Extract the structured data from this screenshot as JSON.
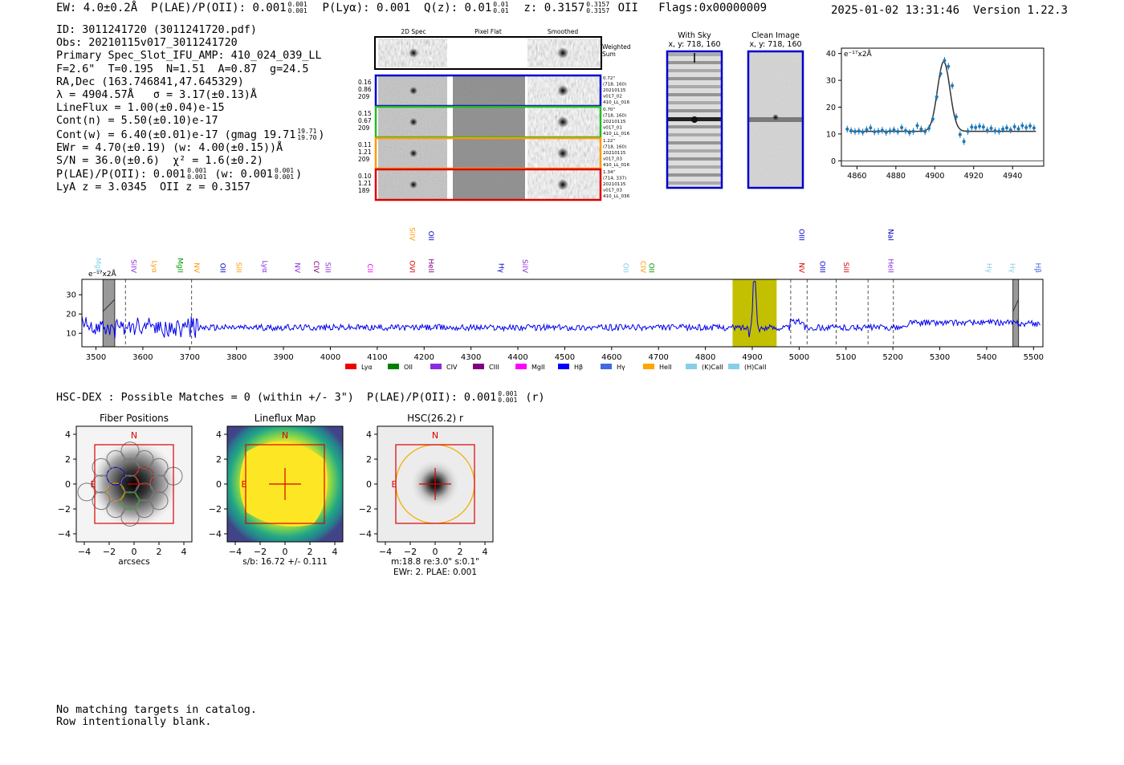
{
  "header": {
    "ew": "EW: 4.0±0.2Å",
    "plae_label": "P(LAE)/P(OII): 0.001",
    "plae_sup": "0.001",
    "plae_sub": "0.001",
    "plya": "P(Lyα): 0.001",
    "qz_label": "Q(z): 0.01",
    "qz_sup": "0.01",
    "qz_sub": "0.01",
    "z_label": "z: 0.3157",
    "z_sup": "0.3157",
    "z_sub": "0.3157",
    "z_line": "OII",
    "flags": "Flags:0x00000009",
    "timestamp": "2025-01-02 13:31:46",
    "version": "Version 1.22.3"
  },
  "info": {
    "id": "ID: 3011241720 (3011241720.pdf)",
    "obs": "Obs: 20210115v017_3011241720",
    "primary": "Primary Spec_Slot_IFU_AMP: 410_024_039_LL",
    "fit": "F=2.6\"  T=0.195  N=1.51  A=0.87  g=24.5",
    "radec": "RA,Dec (163.746841,47.645329)",
    "lambda": "λ = 4904.57Å   σ = 3.17(±0.13)Å",
    "lineflux": "LineFlux = 1.00(±0.04)e-15",
    "contn": "Cont(n) = 5.50(±0.10)e-17",
    "contw": "Cont(w) = 6.40(±0.01)e-17 (gmag 19.71",
    "contw_sup": "19.71",
    "contw_sub": "19.70",
    "contw_close": ")",
    "ewr": "EWr = 4.70(±0.19) (w: 4.00(±0.15))Å",
    "sn": "S/N = 36.0(±0.6)  χ² = 1.6(±0.2)",
    "plae": "P(LAE)/P(OII): 0.001",
    "plae_sup": "0.001",
    "plae_sub": "0.001",
    "plae_w": "(w: 0.001",
    "plae_w_sup": "0.001",
    "plae_w_sub": "0.001",
    "plae_w_close": ")",
    "lya_z": "LyA z = 3.0345  OII z = 0.3157"
  },
  "cutouts": {
    "col_headers": [
      "2D Spec",
      "Pixel Flat",
      "Smoothed"
    ],
    "weighted_sum": "Weighted\nSum",
    "rows": [
      {
        "left": [
          "0.16",
          "0.86",
          "209"
        ],
        "right": [
          "0.72\"",
          "(718, 160)",
          "20210115",
          "v017_02",
          "410_LL_016"
        ],
        "color": "#0000cc"
      },
      {
        "left": [
          "0.15",
          "0.67",
          "209"
        ],
        "right": [
          "0.70\"",
          "(718, 160)",
          "20210115",
          "v017_01",
          "410_LL_016"
        ],
        "color": "#22bb22"
      },
      {
        "left": [
          "0.11",
          "1.21",
          "209"
        ],
        "right": [
          "1.22\"",
          "(718, 160)",
          "20210115",
          "v017_03",
          "410_LL_016"
        ],
        "color": "#ff9900"
      },
      {
        "left": [
          "0.10",
          "1.21",
          "189"
        ],
        "right": [
          "1.34\"",
          "(714, 337)",
          "20210115",
          "v017_03",
          "410_LL_036"
        ],
        "color": "#dd0000"
      }
    ],
    "with_sky": [
      "With Sky",
      "x, y: 718, 160"
    ],
    "clean_image": [
      "Clean Image",
      "x, y: 718, 160"
    ]
  },
  "line_fit_chart": {
    "type": "scatter",
    "unit_label": "e⁻¹⁷x2Å",
    "xlim": [
      4852,
      4956
    ],
    "ylim": [
      -2,
      42
    ],
    "xticks": [
      4860,
      4880,
      4900,
      4920,
      4940
    ],
    "yticks": [
      0,
      10,
      20,
      30,
      40
    ],
    "points_x": [
      4855,
      4857,
      4859,
      4861,
      4863,
      4865,
      4867,
      4869,
      4871,
      4873,
      4875,
      4877,
      4879,
      4881,
      4883,
      4885,
      4887,
      4889,
      4891,
      4893,
      4895,
      4897,
      4899,
      4901,
      4903,
      4905,
      4907,
      4909,
      4911,
      4913,
      4915,
      4917,
      4919,
      4921,
      4923,
      4925,
      4927,
      4929,
      4931,
      4933,
      4935,
      4937,
      4939,
      4941,
      4943,
      4945,
      4947,
      4949,
      4951
    ],
    "points_y": [
      11.8,
      11.2,
      10.9,
      11.1,
      10.7,
      11.6,
      12.3,
      10.8,
      11.0,
      11.4,
      10.6,
      11.1,
      11.5,
      10.9,
      12.4,
      11.2,
      10.5,
      11.0,
      13.1,
      11.8,
      10.9,
      12.1,
      15.6,
      23.8,
      32.5,
      37.4,
      35.2,
      28.0,
      16.4,
      9.8,
      7.2,
      11.0,
      12.6,
      12.4,
      12.9,
      12.6,
      11.4,
      12.1,
      11.2,
      11.0,
      11.8,
      12.3,
      11.5,
      12.7,
      11.9,
      13.1,
      12.4,
      13.0,
      12.2
    ],
    "fit_baseline": 11.0,
    "fit_amp": 26.0,
    "fit_center": 4904.6,
    "fit_sigma": 3.17
  },
  "spectrum_chart": {
    "type": "line",
    "unit_label": "e⁻¹⁷x2Å",
    "xlim": [
      3470,
      5520
    ],
    "ylim": [
      3,
      38
    ],
    "xticks": [
      3500,
      3600,
      3700,
      3800,
      3900,
      4000,
      4100,
      4200,
      4300,
      4400,
      4500,
      4600,
      4700,
      4800,
      4900,
      5000,
      5100,
      5200,
      5300,
      5400,
      5500
    ],
    "yticks": [
      10,
      20,
      30
    ],
    "highlight_band": [
      4858,
      4952
    ],
    "masked_bands": [
      [
        3515,
        3540
      ],
      [
        5456,
        5468
      ]
    ],
    "dashed_lines": [
      3563,
      3704,
      4982,
      5017,
      5079,
      5147,
      5201
    ],
    "emission_peak_x": 4904.6,
    "emission_peak_y": 36,
    "line_labels": [
      {
        "text": "MgII",
        "x": 3500,
        "row": 1,
        "color": "#87ceeb"
      },
      {
        "text": "SiIV",
        "x": 3575,
        "row": 1,
        "color": "#8a2be2"
      },
      {
        "text": "Lyα",
        "x": 3620,
        "row": 1,
        "color": "#ff9900"
      },
      {
        "text": "MgII",
        "x": 3675,
        "row": 1,
        "color": "#009900"
      },
      {
        "text": "NV",
        "x": 3710,
        "row": 1,
        "color": "#ff9900"
      },
      {
        "text": "OII",
        "x": 3765,
        "row": 1,
        "color": "#0000cc"
      },
      {
        "text": "SiII",
        "x": 3800,
        "row": 1,
        "color": "#ff9900"
      },
      {
        "text": "Lyα",
        "x": 3855,
        "row": 1,
        "color": "#8a2be2"
      },
      {
        "text": "NV",
        "x": 3925,
        "row": 1,
        "color": "#8a2be2"
      },
      {
        "text": "CIV",
        "x": 3965,
        "row": 1,
        "color": "#800080"
      },
      {
        "text": "SiII",
        "x": 3990,
        "row": 1,
        "color": "#8a2be2"
      },
      {
        "text": "CII",
        "x": 4080,
        "row": 1,
        "color": "#ff00ff"
      },
      {
        "text": "OVI",
        "x": 4170,
        "row": 1,
        "color": "#dd0000"
      },
      {
        "text": "HeII",
        "x": 4210,
        "row": 1,
        "color": "#800080"
      },
      {
        "text": "SiIV",
        "x": 4170,
        "row": 0,
        "color": "#ff9900"
      },
      {
        "text": "OII",
        "x": 4210,
        "row": 0,
        "color": "#0000cc"
      },
      {
        "text": "Hγ",
        "x": 4360,
        "row": 1,
        "color": "#0000cc"
      },
      {
        "text": "SiIV",
        "x": 4410,
        "row": 1,
        "color": "#8a2be2"
      },
      {
        "text": "OII",
        "x": 4625,
        "row": 1,
        "color": "#87ceeb"
      },
      {
        "text": "CIV",
        "x": 4662,
        "row": 1,
        "color": "#ff9900"
      },
      {
        "text": "OII",
        "x": 4680,
        "row": 1,
        "color": "#009900"
      },
      {
        "text": "NV",
        "x": 5000,
        "row": 1,
        "color": "#dd0000"
      },
      {
        "text": "OIII",
        "x": 5000,
        "row": 0,
        "color": "#0000cc"
      },
      {
        "text": "OIII",
        "x": 5045,
        "row": 1,
        "color": "#0000cc"
      },
      {
        "text": "SiII",
        "x": 5095,
        "row": 1,
        "color": "#dd0000"
      },
      {
        "text": "HeII",
        "x": 5190,
        "row": 1,
        "color": "#8a2be2"
      },
      {
        "text": "NaI",
        "x": 5190,
        "row": 0,
        "color": "#0000cc"
      },
      {
        "text": "Hγ",
        "x": 5400,
        "row": 1,
        "color": "#87ceeb"
      },
      {
        "text": "Hγ",
        "x": 5450,
        "row": 1,
        "color": "#87ceeb"
      },
      {
        "text": "Hβ",
        "x": 5505,
        "row": 1,
        "color": "#4169e1"
      }
    ],
    "legend": [
      {
        "label": "Lyα",
        "color": "#ee0000"
      },
      {
        "label": "OII",
        "color": "#008000"
      },
      {
        "label": "CIV",
        "color": "#8a2be2"
      },
      {
        "label": "CIII",
        "color": "#800080"
      },
      {
        "label": "MgII",
        "color": "#ff00ff"
      },
      {
        "label": "Hβ",
        "color": "#0000ff"
      },
      {
        "label": "Hγ",
        "color": "#4169e1"
      },
      {
        "label": "HeII",
        "color": "#ffa500"
      },
      {
        "label": "(K)CaII",
        "color": "#87ceeb"
      },
      {
        "label": "(H)CaII",
        "color": "#87ceeb"
      }
    ]
  },
  "hsc_dex": {
    "text": "HSC-DEX : Possible Matches = 0 (within +/- 3\")  P(LAE)/P(OII): 0.001",
    "sup": "0.001",
    "sub": "0.001",
    "suffix": "(r)"
  },
  "panels": [
    {
      "title": "Fiber Positions",
      "xlabel": "arcsecs",
      "sub2": "",
      "sub3": "",
      "north": "N",
      "east": "E"
    },
    {
      "title": "Lineflux Map",
      "xlabel": "s/b: 16.72 +/- 0.111",
      "sub2": "",
      "sub3": "",
      "north": "N",
      "east": "E"
    },
    {
      "title": "HSC(26.2) r",
      "xlabel": "m:18.8  re:3.0\"  s:0.1\"",
      "sub2": "EWr: 2. PLAE: 0.001",
      "sub3": "",
      "north": "N",
      "east": "E"
    }
  ],
  "panel_ticks": [
    "4",
    "2",
    "0",
    "−2",
    "−4"
  ],
  "panel_xticks": [
    "−4",
    "−2",
    "0",
    "2",
    "4"
  ],
  "footer": [
    "No matching targets in catalog.",
    "Row intentionally blank."
  ]
}
